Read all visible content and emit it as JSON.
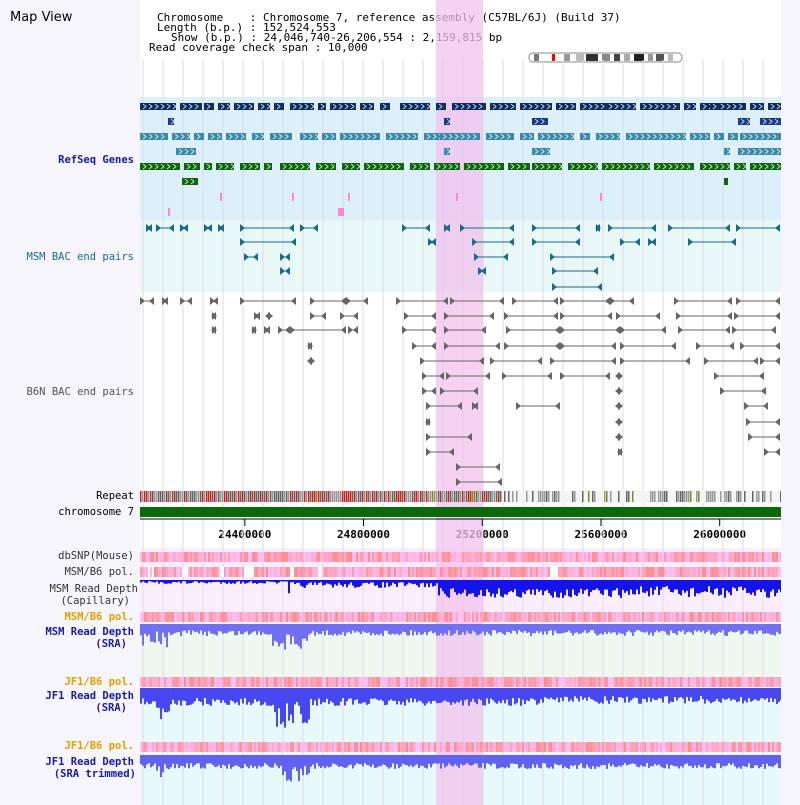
{
  "title": "Map View",
  "info": {
    "chromosome_label": "Chromosome",
    "chromosome_value": "Chromosome 7, reference assembly (C57BL/6J) (Build 37)",
    "length_label": "Length (b.p.)",
    "length_value": "152,524,553",
    "show_label": "Show (b.p.)",
    "show_value": "24,046,740-26,206,554 : 2,159,815 bp",
    "coverage_label": "Read coverage check span",
    "coverage_value": "10,000"
  },
  "tracks": {
    "refseq": "RefSeq Genes",
    "msm_bac": "MSM BAC end pairs",
    "b6n_bac": "B6N BAC end pairs",
    "repeat": "Repeat",
    "chromosome": "chromosome 7",
    "dbsnp": "dbSNP(Mouse)",
    "msm_b6_pol_1": "MSM/B6 pol.",
    "msm_depth_cap_1": "MSM Read Depth",
    "msm_depth_cap_2": "(Capillary)",
    "msm_b6_pol_2": "MSM/B6 pol.",
    "msm_depth_sra_1": "MSM Read Depth",
    "msm_depth_sra_2": "(SRA)",
    "jf1_b6_pol_1": "JF1/B6 pol.",
    "jf1_depth_sra_1": "JF1 Read Depth",
    "jf1_depth_sra_2": "(SRA)",
    "jf1_b6_pol_2": "JF1/B6 pol.",
    "jf1_depth_trim_1": "JF1 Read Depth",
    "jf1_depth_trim_2": "(SRA trimmed)"
  },
  "axis": {
    "ticks": [
      "24400000",
      "24800000",
      "25200000",
      "25600000",
      "26000000"
    ],
    "tick_values": [
      24400000,
      24800000,
      25200000,
      25600000,
      26000000
    ],
    "range_start": 24046740,
    "range_end": 26206554
  },
  "colors": {
    "refseq_dark": "#1a3a6e",
    "refseq_mid": "#3a8aaa",
    "refseq_green": "#0a6a0a",
    "msm_bac": "#1a6a8a",
    "b6n_bac": "#666666",
    "chromosome_bar": "#0a6a0a",
    "highlight": "#f2c2ee",
    "depth_blue": "#2020e0",
    "depth_light": "#7878f0",
    "label_blue": "#1a1aaa",
    "label_orange": "#e0a000",
    "label_teal": "#1a6a8a"
  }
}
